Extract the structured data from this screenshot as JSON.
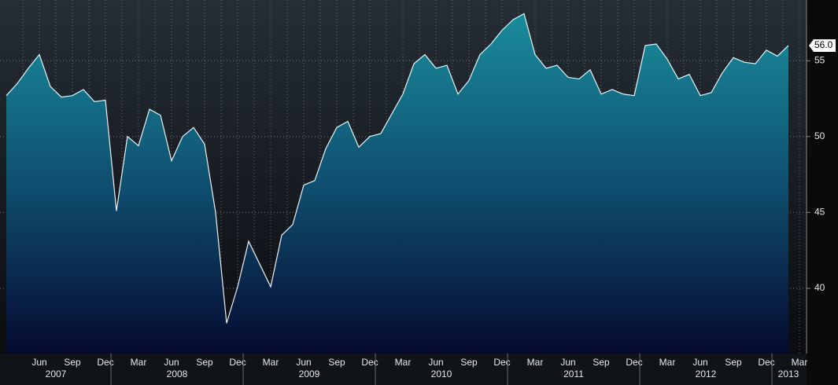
{
  "chart_data": {
    "type": "area",
    "values": [
      52.7,
      53.5,
      54.5,
      55.4,
      53.3,
      52.6,
      52.7,
      53.1,
      52.3,
      52.4,
      45.1,
      50.0,
      49.4,
      51.8,
      51.4,
      48.4,
      50.0,
      50.6,
      49.5,
      45.0,
      37.7,
      40.1,
      43.1,
      41.6,
      40.1,
      43.5,
      44.2,
      46.8,
      47.1,
      49.2,
      50.6,
      51.0,
      49.3,
      50.0,
      50.2,
      51.5,
      52.8,
      54.8,
      55.4,
      54.5,
      54.7,
      52.8,
      53.7,
      55.4,
      56.1,
      57.0,
      57.7,
      58.1,
      55.4,
      54.5,
      54.7,
      53.9,
      53.8,
      54.4,
      52.8,
      53.1,
      52.8,
      52.7,
      56.0,
      56.1,
      55.1,
      53.8,
      54.1,
      52.7,
      52.9,
      54.2,
      55.2,
      54.9,
      54.8,
      55.7,
      55.3,
      56.0
    ],
    "last_label": "56.0",
    "month_labels": [
      "Jun",
      "Sep",
      "Dec",
      "Mar",
      "Jun",
      "Sep",
      "Dec",
      "Mar",
      "Jun",
      "Sep",
      "Dec",
      "Mar",
      "Jun",
      "Sep",
      "Dec",
      "Mar",
      "Jun",
      "Sep",
      "Dec",
      "Mar",
      "Jun",
      "Sep",
      "Dec",
      "Mar"
    ],
    "year_labels": [
      "2007",
      "2008",
      "2009",
      "2010",
      "2011",
      "2012",
      "2013"
    ],
    "ylim": [
      35.7,
      59.0
    ],
    "yticks": [
      40,
      45,
      50,
      55
    ],
    "grid": true,
    "color": "#1a8c9c"
  }
}
